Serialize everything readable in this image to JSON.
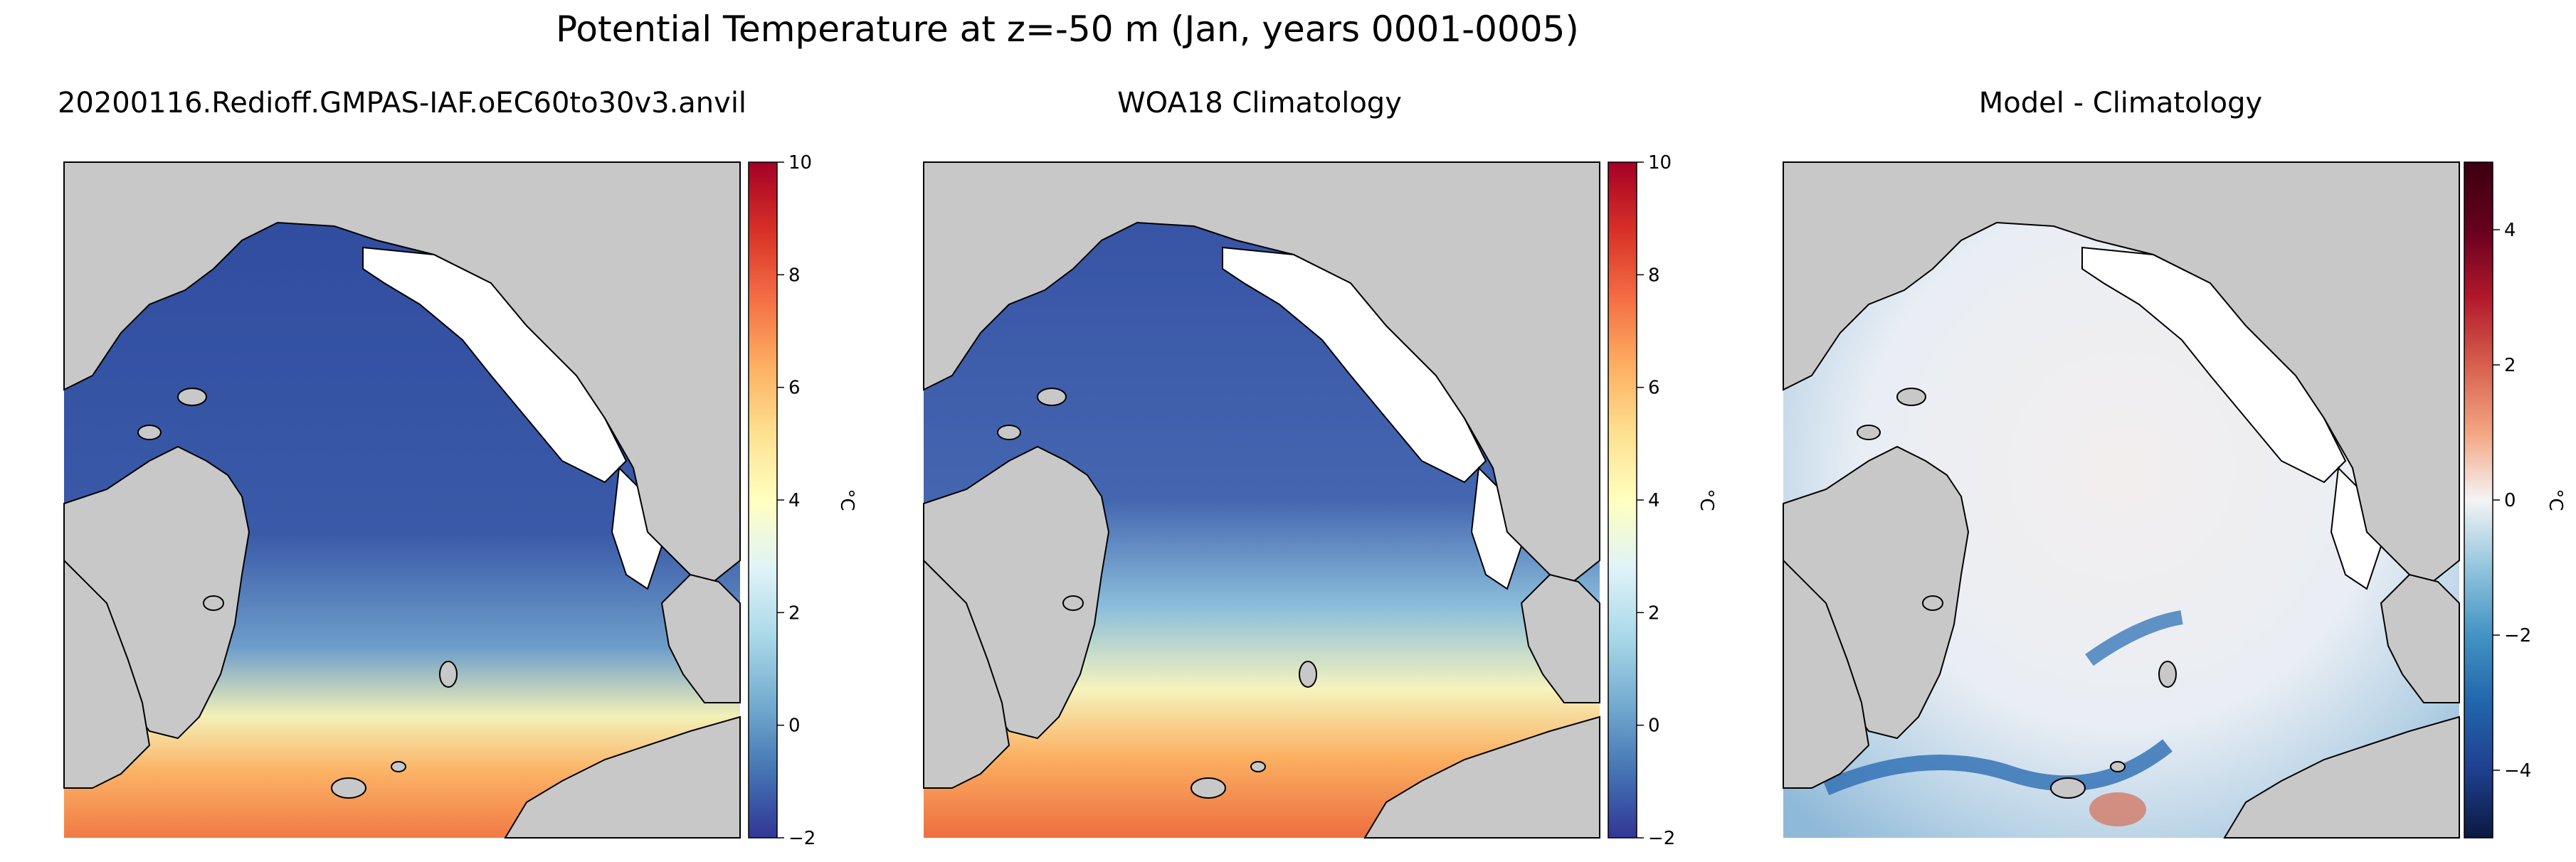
{
  "figure": {
    "suptitle": "Potential Temperature at z=-50 m (Jan, years 0001-0005)"
  },
  "panels": [
    {
      "id": "model",
      "title": "20200116.Redioff.GMPAS-IAF.oEC60to30v3.anvil",
      "colorbar": {
        "label": "°C",
        "colormap": "RdYlBu_r",
        "range": [
          -2,
          10
        ],
        "ticks": [
          "−2",
          "0",
          "2",
          "4",
          "6",
          "8",
          "10"
        ],
        "tick_values": [
          -2,
          0,
          2,
          4,
          6,
          8,
          10
        ]
      }
    },
    {
      "id": "obs",
      "title": "WOA18 Climatology",
      "colorbar": {
        "label": "°C",
        "colormap": "RdYlBu_r",
        "range": [
          -2,
          10
        ],
        "ticks": [
          "−2",
          "0",
          "2",
          "4",
          "6",
          "8",
          "10"
        ],
        "tick_values": [
          -2,
          0,
          2,
          4,
          6,
          8,
          10
        ]
      }
    },
    {
      "id": "bias",
      "title": "Model - Climatology",
      "colorbar": {
        "label": "°C",
        "colormap": "RdBu_r",
        "range": [
          -5,
          5
        ],
        "ticks": [
          "−4",
          "−2",
          "0",
          "2",
          "4"
        ],
        "tick_values": [
          -4,
          -2,
          0,
          2,
          4
        ]
      }
    }
  ],
  "colors": {
    "land": "#c8c8c8",
    "sea_ice_mask": "#ffffff",
    "coastline": "#000000"
  }
}
